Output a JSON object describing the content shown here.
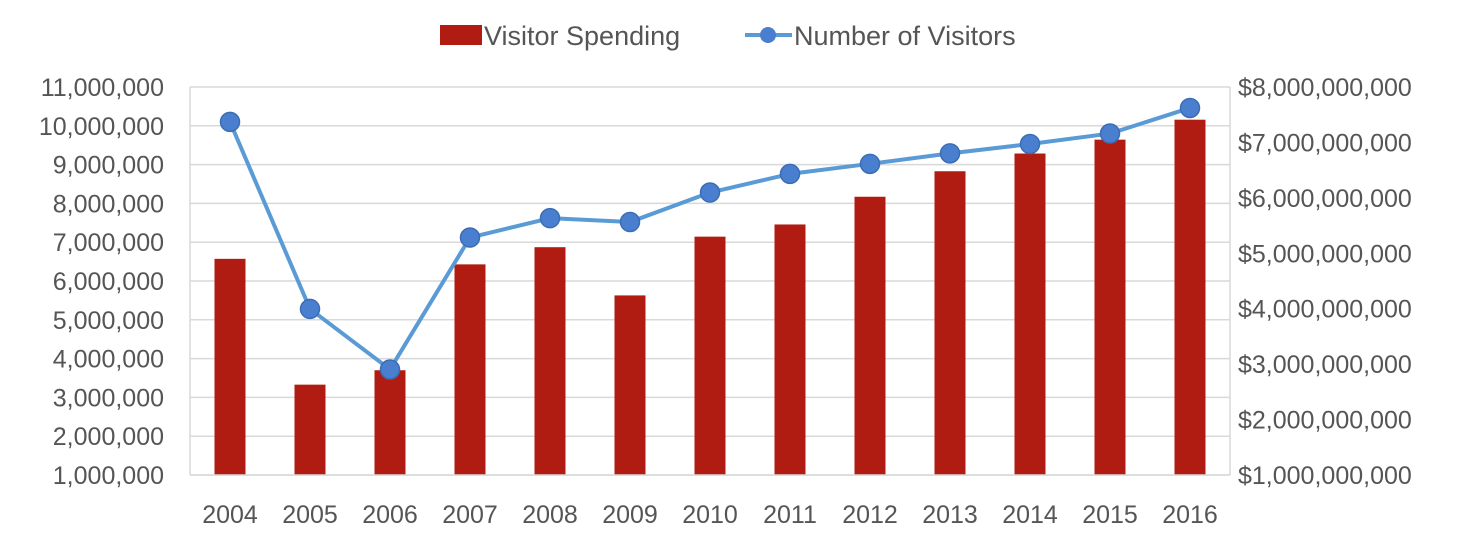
{
  "chart_data": {
    "type": "bar",
    "categories": [
      "2004",
      "2005",
      "2006",
      "2007",
      "2008",
      "2009",
      "2010",
      "2011",
      "2012",
      "2013",
      "2014",
      "2015",
      "2016"
    ],
    "series": [
      {
        "name": "Visitor Spending",
        "type": "bar",
        "axis": "right",
        "color": "#B01C12",
        "values": [
          4900000000,
          2630000000,
          2890000000,
          4800000000,
          5110000000,
          4240000000,
          5300000000,
          5520000000,
          6020000000,
          6480000000,
          6800000000,
          7050000000,
          7410000000
        ]
      },
      {
        "name": "Number of Visitors",
        "type": "line",
        "axis": "left",
        "color": "#5B9BD5",
        "marker_color": "#4A7FCF",
        "values": [
          10100000,
          5280000,
          3720000,
          7120000,
          7620000,
          7520000,
          8280000,
          8760000,
          9020000,
          9290000,
          9530000,
          9800000,
          10460000
        ]
      }
    ],
    "y_left": {
      "ylim": [
        1000000,
        11000000
      ],
      "ticks": [
        "1,000,000",
        "2,000,000",
        "3,000,000",
        "4,000,000",
        "5,000,000",
        "6,000,000",
        "7,000,000",
        "8,000,000",
        "9,000,000",
        "10,000,000",
        "11,000,000"
      ]
    },
    "y_right": {
      "ylim": [
        1000000000,
        8000000000
      ],
      "ticks": [
        "$1,000,000,000",
        "$2,000,000,000",
        "$3,000,000,000",
        "$4,000,000,000",
        "$5,000,000,000",
        "$6,000,000,000",
        "$7,000,000,000",
        "$8,000,000,000"
      ]
    },
    "grid": true,
    "legend_position": "top"
  }
}
